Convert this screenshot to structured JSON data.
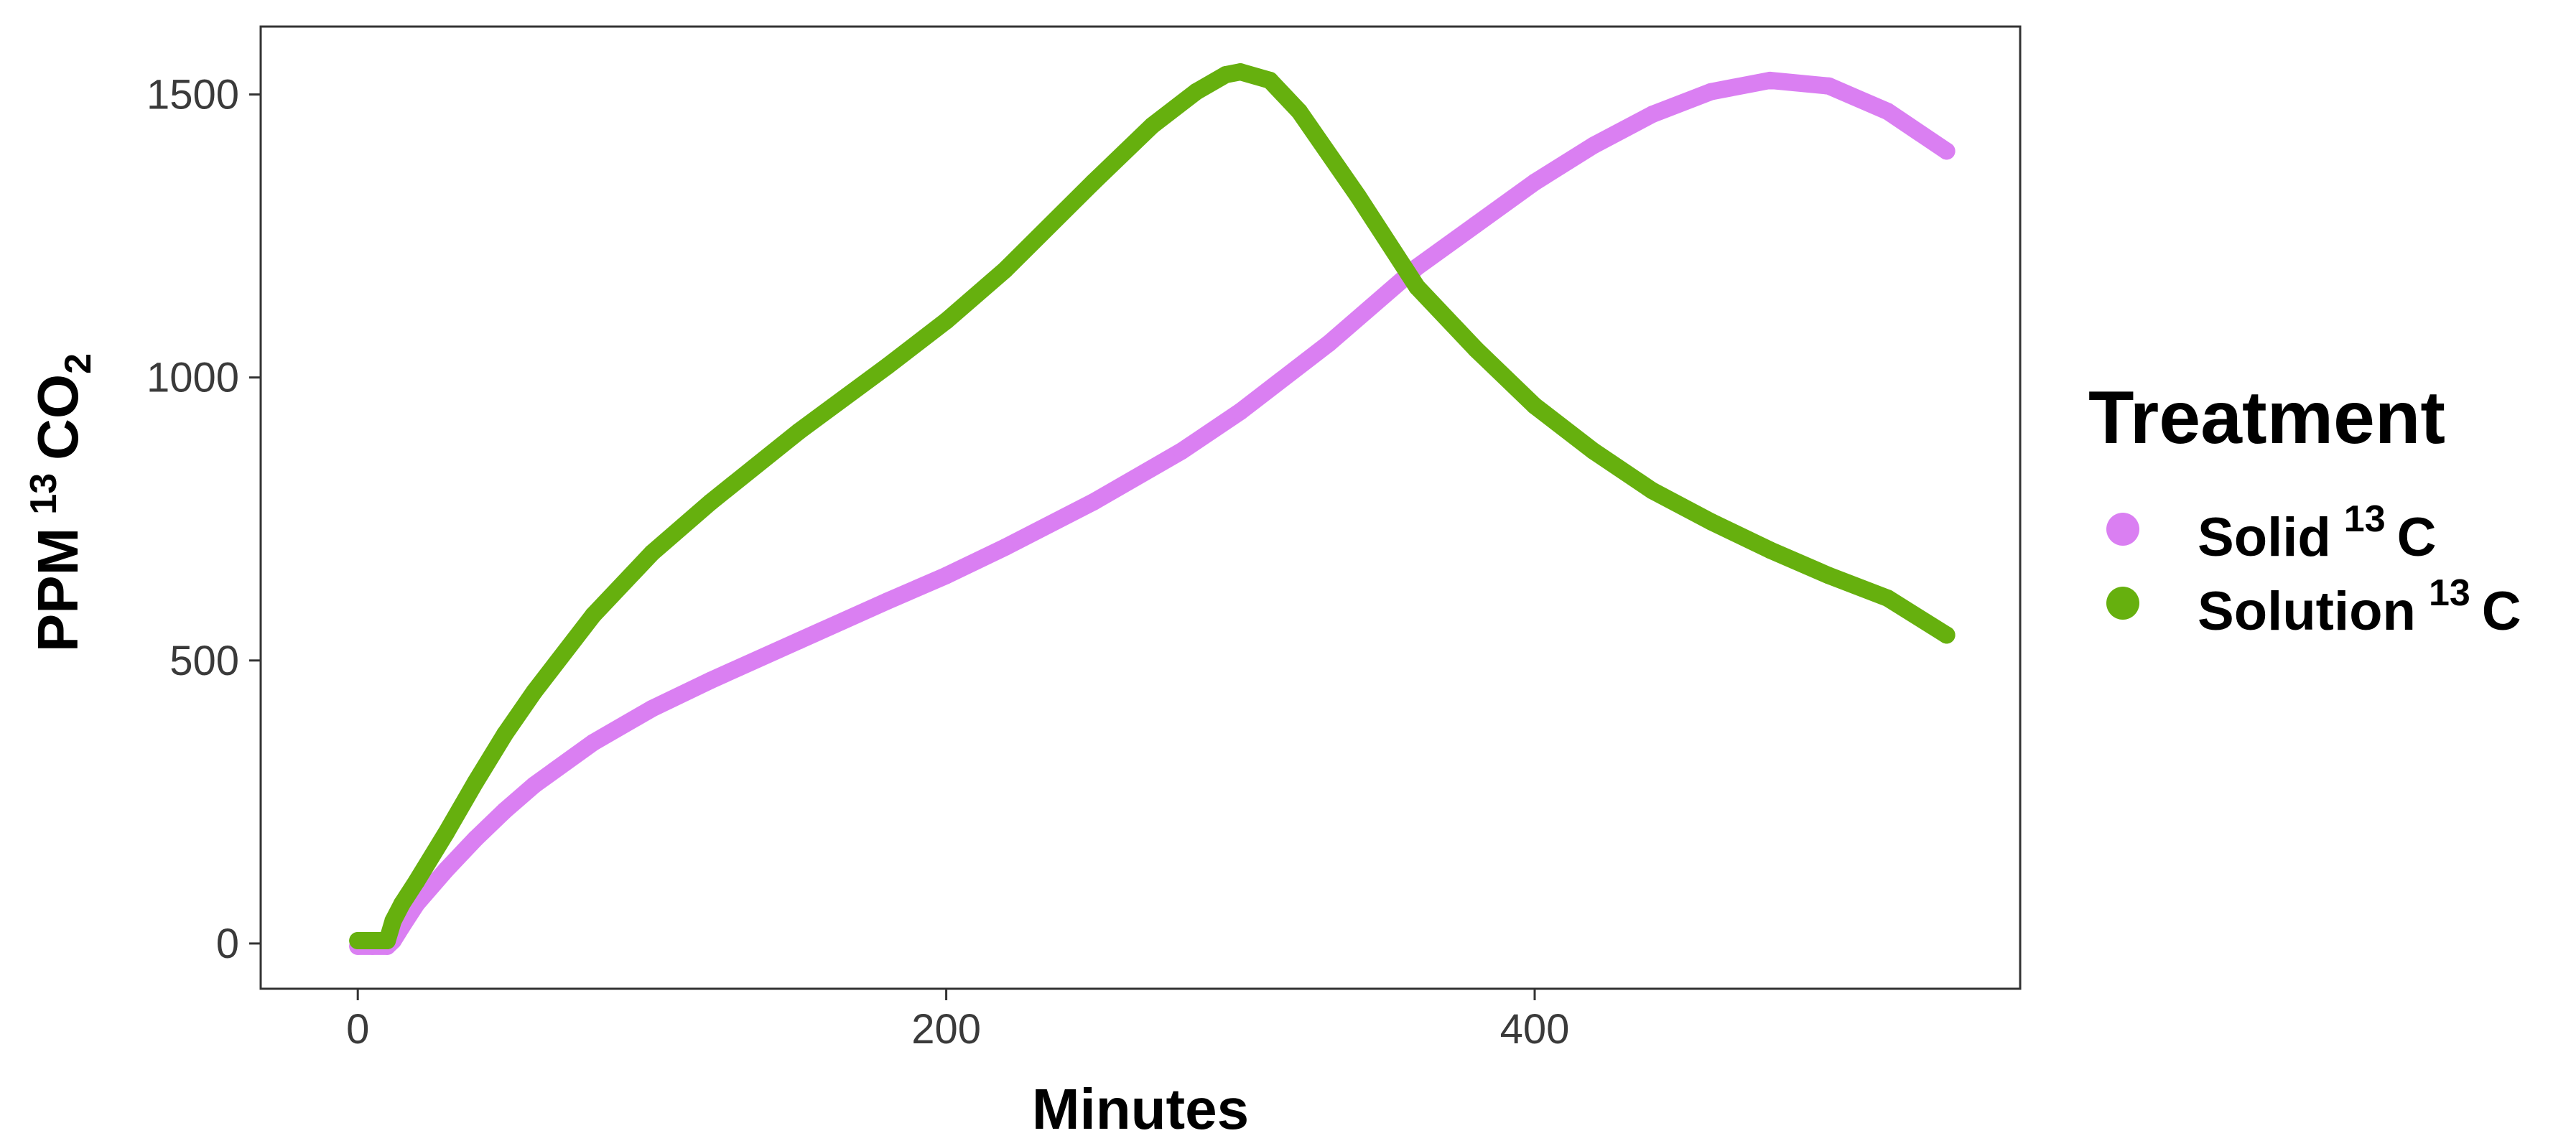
{
  "chart_data": {
    "type": "scatter",
    "xlabel": "Minutes",
    "ylabel": {
      "main": "PPM",
      "isotope": "13",
      "species": "CO",
      "subscript": "2"
    },
    "xlim": [
      -33,
      565
    ],
    "ylim": [
      -80,
      1620
    ],
    "xticks": [
      0,
      200,
      400
    ],
    "yticks": [
      0,
      500,
      1000,
      1500
    ],
    "xtick_labels": [
      "0",
      "200",
      "400"
    ],
    "ytick_labels": [
      "0",
      "500",
      "1000",
      "1500"
    ],
    "grid": false,
    "legend": {
      "title": "Treatment",
      "placement": "right",
      "entries": [
        {
          "label": "Solid",
          "isotope": "13",
          "element": "C",
          "color": "#DA7FF2"
        },
        {
          "label": "Solution",
          "isotope": "13",
          "element": "C",
          "color": "#66B00E"
        }
      ]
    },
    "series": [
      {
        "name": "Solid 13 C",
        "color": "#DA7FF2",
        "x": [
          0,
          5,
          10,
          12,
          15,
          20,
          30,
          40,
          50,
          60,
          80,
          100,
          120,
          150,
          180,
          200,
          220,
          250,
          280,
          300,
          330,
          360,
          380,
          400,
          420,
          440,
          460,
          480,
          500,
          520,
          540
        ],
        "y": [
          -5,
          -5,
          -5,
          5,
          30,
          70,
          130,
          185,
          235,
          280,
          355,
          415,
          465,
          535,
          605,
          650,
          700,
          780,
          870,
          940,
          1060,
          1195,
          1270,
          1345,
          1410,
          1465,
          1505,
          1525,
          1515,
          1470,
          1400
        ]
      },
      {
        "name": "Solution 13 C",
        "color": "#66B00E",
        "x": [
          0,
          5,
          10,
          12,
          15,
          20,
          30,
          40,
          50,
          60,
          80,
          100,
          120,
          150,
          180,
          200,
          220,
          250,
          270,
          285,
          295,
          300,
          310,
          320,
          340,
          360,
          380,
          400,
          420,
          440,
          460,
          480,
          500,
          520,
          540
        ],
        "y": [
          5,
          5,
          5,
          40,
          70,
          110,
          195,
          285,
          370,
          445,
          580,
          690,
          780,
          905,
          1020,
          1100,
          1190,
          1345,
          1445,
          1505,
          1535,
          1540,
          1525,
          1470,
          1320,
          1160,
          1050,
          950,
          870,
          800,
          745,
          695,
          650,
          610,
          545
        ]
      }
    ]
  }
}
